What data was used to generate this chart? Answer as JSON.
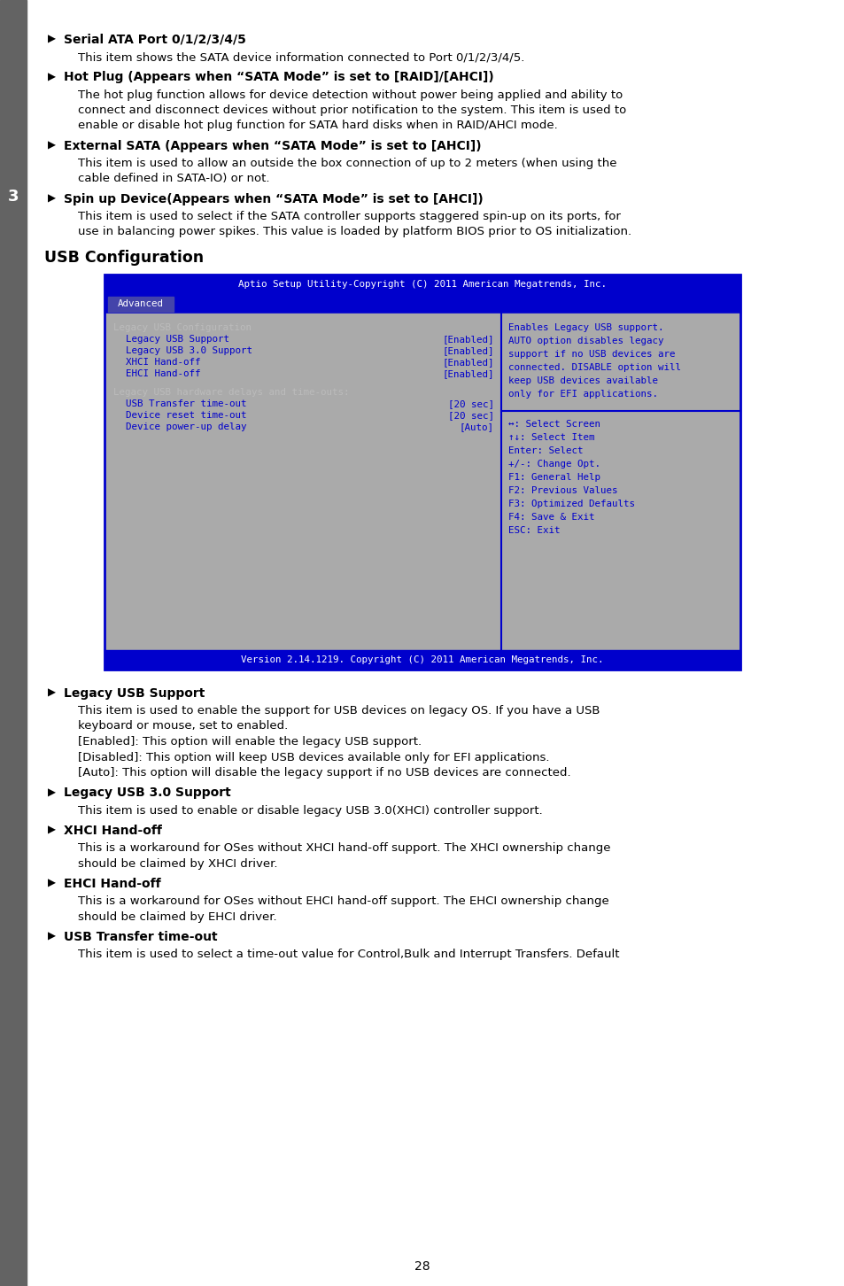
{
  "page_bg": "#ffffff",
  "sidebar_color": "#636363",
  "sidebar_text": "3",
  "title_section": "USB Configuration",
  "bios_bg": "#0000cc",
  "bios_header_text": "Aptio Setup Utility-Copyright (C) 2011 American Megatrends, Inc.",
  "bios_tab": "Advanced",
  "bios_tab_bg": "#4444aa",
  "bios_content_bg": "#aaaaaa",
  "bios_text_color": "#0000cc",
  "bios_dim_color": "#888888",
  "bios_items": [
    {
      "label": "Legacy USB Configuration",
      "value": "",
      "dim": true
    },
    {
      "label": "Legacy USB Support",
      "value": "[Enabled]",
      "dim": false
    },
    {
      "label": "Legacy USB 3.0 Support",
      "value": "[Enabled]",
      "dim": false
    },
    {
      "label": "XHCI Hand-off",
      "value": "[Enabled]",
      "dim": false
    },
    {
      "label": "EHCI Hand-off",
      "value": "[Enabled]",
      "dim": false
    }
  ],
  "bios_section2": "Legacy USB hardware delays and time-outs:",
  "bios_items2": [
    {
      "label": "USB Transfer time-out",
      "value": "[20 sec]"
    },
    {
      "label": "Device reset time-out",
      "value": "[20 sec]"
    },
    {
      "label": "Device power-up delay",
      "value": "[Auto]"
    }
  ],
  "bios_help_lines": [
    "Enables Legacy USB support.",
    "AUTO option disables legacy",
    "support if no USB devices are",
    "connected. DISABLE option will",
    "keep USB devices available",
    "only for EFI applications."
  ],
  "bios_key_lines": [
    "↔: Select Screen",
    "↑↓: Select Item",
    "Enter: Select",
    "+/-: Change Opt.",
    "F1: General Help",
    "F2: Previous Values",
    "F3: Optimized Defaults",
    "F4: Save & Exit",
    "ESC: Exit"
  ],
  "bios_footer": "Version 2.14.1219. Copyright (C) 2011 American Megatrends, Inc.",
  "top_bullets": [
    {
      "heading": "Serial ATA Port 0/1/2/3/4/5",
      "body": [
        "This item shows the SATA device information connected to Port 0/1/2/3/4/5."
      ]
    },
    {
      "heading": "Hot Plug (Appears when “SATA Mode” is set to [RAID]/[AHCI])",
      "body": [
        "The hot plug function allows for device detection without power being applied and ability to",
        "connect and disconnect devices without prior notification to the system. This item is used to",
        "enable or disable hot plug function for SATA hard disks when in RAID/AHCI mode."
      ]
    },
    {
      "heading": "External SATA (Appears when “SATA Mode” is set to [AHCI])",
      "body": [
        "This item is used to allow an outside the box connection of up to 2 meters (when using the",
        "cable defined in SATA-IO) or not."
      ]
    },
    {
      "heading": "Spin up Device(Appears when “SATA Mode” is set to [AHCI])",
      "body": [
        "This item is used to select if the SATA controller supports staggered spin-up on its ports, for",
        "use in balancing power spikes. This value is loaded by platform BIOS prior to OS initialization."
      ]
    }
  ],
  "bottom_bullets": [
    {
      "heading": "Legacy USB Support",
      "body": [
        "This item is used to enable the support for USB devices on legacy OS. If you have a USB",
        "keyboard or mouse, set to enabled.",
        "[Enabled]: This option will enable the legacy USB support.",
        "[Disabled]: This option will keep USB devices available only for EFI applications.",
        "[Auto]: This option will disable the legacy support if no USB devices are connected."
      ]
    },
    {
      "heading": "Legacy USB 3.0 Support",
      "body": [
        "This item is used to enable or disable legacy USB 3.0(XHCI) controller support."
      ]
    },
    {
      "heading": "XHCI Hand-off",
      "body": [
        "This is a workaround for OSes without XHCI hand-off support. The XHCI ownership change",
        "should be claimed by XHCI driver."
      ]
    },
    {
      "heading": "EHCI Hand-off",
      "body": [
        "This is a workaround for OSes without EHCI hand-off support. The EHCI ownership change",
        "should be claimed by EHCI driver."
      ]
    },
    {
      "heading": "USB Transfer time-out",
      "body": [
        "This item is used to select a time-out value for Control,Bulk and Interrupt Transfers. Default"
      ]
    }
  ],
  "page_number": "28"
}
